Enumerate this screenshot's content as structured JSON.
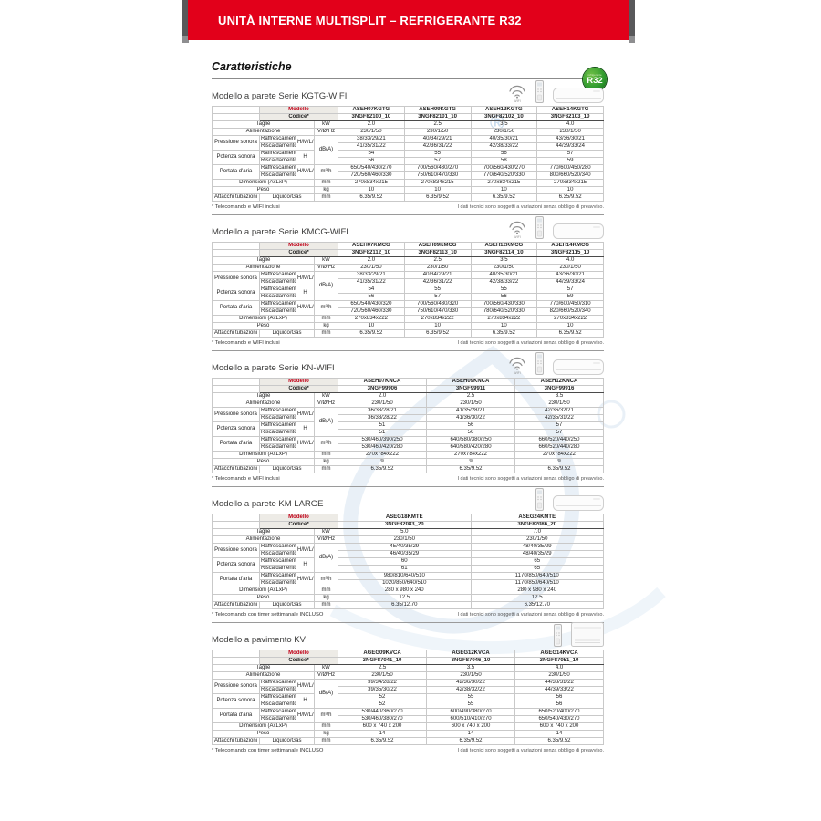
{
  "banner": {
    "title": "UNITÀ INTERNE MULTISPLIT – REFRIGERANTE R32"
  },
  "page": {
    "heading": "Caratteristiche",
    "badge": {
      "small": "refrigerante",
      "label": "R32"
    }
  },
  "watermark": {
    "symbol": "®"
  },
  "labels": {
    "modello": "Modello",
    "codice": "Codice*",
    "taglie": "Taglie",
    "alimentazione": "Alimentazione",
    "pressione": "Pressione sonora",
    "potenza": "Potenza sonora",
    "portata": "Portata d'aria",
    "raffrescamento": "Raffrescamento",
    "riscaldamento": "Riscaldamento",
    "hmlq": "H/M/L/Q",
    "h": "H",
    "dimensioni": "Dimensioni (AxLxP)",
    "peso": "Peso",
    "attacchi": "Attacchi tubazioni",
    "liquido_gas": "Liquido/Gas",
    "wifi": "WIFI",
    "units": {
      "kw": "kW",
      "alim": "V/Ø/Hz",
      "dba": "dB(A)",
      "m3h": "m³/h",
      "mm": "mm",
      "kg": "kg"
    }
  },
  "row_template": [
    {
      "kind": "simple",
      "label_key": "taglie",
      "unit_key": "kw",
      "data_key": "taglie"
    },
    {
      "kind": "simple",
      "label_key": "alimentazione",
      "unit_key": "alim",
      "data_key": "alimentazione"
    },
    {
      "kind": "group",
      "label_key": "pressione",
      "sym_key": "hmlq",
      "unit_key": "dba",
      "unit_rowspan": 4,
      "rows": [
        [
          "raffrescamento",
          "press_raff"
        ],
        [
          "riscaldamento",
          "press_risc"
        ]
      ]
    },
    {
      "kind": "group",
      "label_key": "potenza",
      "sym_key": "h",
      "unit_key": null,
      "rows": [
        [
          "raffrescamento",
          "pot_raff"
        ],
        [
          "riscaldamento",
          "pot_risc"
        ]
      ]
    },
    {
      "kind": "group",
      "label_key": "portata",
      "sym_key": "hmlq",
      "unit_key": "m3h",
      "unit_rowspan": 2,
      "rows": [
        [
          "raffrescamento",
          "port_raff"
        ],
        [
          "riscaldamento",
          "port_risc"
        ]
      ]
    },
    {
      "kind": "simple",
      "label_key": "dimensioni",
      "unit_key": "mm",
      "data_key": "dimensioni"
    },
    {
      "kind": "simple",
      "label_key": "peso",
      "unit_key": "kg",
      "data_key": "peso"
    },
    {
      "kind": "sub",
      "label_key": "attacchi",
      "sub_key": "liquido_gas",
      "unit_key": "mm",
      "data_key": "attacchi"
    }
  ],
  "footnote_right": "I dati tecnici sono soggetti a variazioni senza obbligo di preavviso.",
  "sections": [
    {
      "id": "kgtg-wifi",
      "title": "Modello a parete Serie KGTG-WIFI",
      "icons": [
        "wifi",
        "remote",
        "wall"
      ],
      "footnote_left": "* Telecomando e WIFI inclusi",
      "models": [
        "ASEH07KGTG",
        "ASEH09KGTG",
        "ASEH12KGTG",
        "ASEH14KGTG"
      ],
      "codes": [
        "3NGF82100_10",
        "3NGF82101_10",
        "3NGF82102_10",
        "3NGF82103_10"
      ],
      "taglie": [
        "2.0",
        "2.5",
        "3.5",
        "4.0"
      ],
      "alimentazione": [
        "230/1/50",
        "230/1/50",
        "230/1/50",
        "230/1/50"
      ],
      "press_raff": [
        "38/33/29/21",
        "40/34/29/21",
        "40/35/30/21",
        "43/36/30/21"
      ],
      "press_risc": [
        "41/35/31/22",
        "42/36/31/22",
        "42/38/33/22",
        "44/39/33/24"
      ],
      "pot_raff": [
        "54",
        "55",
        "56",
        "57"
      ],
      "pot_risc": [
        "56",
        "57",
        "58",
        "59"
      ],
      "port_raff": [
        "650/540/430/270",
        "700/560/430/270",
        "700/560/430/270",
        "770/600/450/280"
      ],
      "port_risc": [
        "720/560/460/330",
        "750/610/470/330",
        "770/640/520/330",
        "800/660/520/340"
      ],
      "dimensioni": [
        "270x834x215",
        "270x834x215",
        "270x834x215",
        "270x834x215"
      ],
      "peso": [
        "10",
        "10",
        "10",
        "10"
      ],
      "attacchi": [
        "6.35/9.52",
        "6.35/9.52",
        "6.35/9.52",
        "6.35/9.52"
      ]
    },
    {
      "id": "kmcg-wifi",
      "title": "Modello a parete Serie KMCG-WIFI",
      "icons": [
        "wifi",
        "remote",
        "wall"
      ],
      "footnote_left": "* Telecomando e WIFI inclusi",
      "models": [
        "ASEH07KMCG",
        "ASEH09KMCG",
        "ASEH12KMCG",
        "ASEH14KMCG"
      ],
      "codes": [
        "3NGF82112_10",
        "3NGF82113_10",
        "3NGF82114_10",
        "3NGF82115_10"
      ],
      "taglie": [
        "2.0",
        "2.5",
        "3.5",
        "4.0"
      ],
      "alimentazione": [
        "230/1/50",
        "230/1/50",
        "230/1/50",
        "230/1/50"
      ],
      "press_raff": [
        "38/33/29/21",
        "40/34/29/21",
        "40/35/30/21",
        "43/36/30/21"
      ],
      "press_risc": [
        "41/35/31/22",
        "42/36/31/22",
        "42/38/33/22",
        "44/39/33/24"
      ],
      "pot_raff": [
        "54",
        "55",
        "55",
        "57"
      ],
      "pot_risc": [
        "56",
        "57",
        "56",
        "59"
      ],
      "port_raff": [
        "650/540/430/320",
        "700/560/430/320",
        "700/560/430/330",
        "770/600/450/310"
      ],
      "port_risc": [
        "720/560/460/330",
        "750/610/470/330",
        "780/640/520/330",
        "820/660/520/340"
      ],
      "dimensioni": [
        "270x834x222",
        "270x834x222",
        "270x834x222",
        "270x834x222"
      ],
      "peso": [
        "10",
        "10",
        "10",
        "10"
      ],
      "attacchi": [
        "6.35/9.52",
        "6.35/9.52",
        "6.35/9.52",
        "6.35/9.52"
      ]
    },
    {
      "id": "kn-wifi",
      "title": "Modello a parete Serie KN-WIFI",
      "icons": [
        "wifi",
        "remote",
        "wall"
      ],
      "footnote_left": "* Telecomando e WIFI inclusi",
      "models": [
        "ASEH07KNCA",
        "ASEH09KNCA",
        "ASEH12KNCA"
      ],
      "codes": [
        "3NGF99906",
        "3NGF99911",
        "3NGF99916"
      ],
      "taglie": [
        "2.0",
        "2.5",
        "3.5"
      ],
      "alimentazione": [
        "230/1/50",
        "230/1/50",
        "230/1/50"
      ],
      "press_raff": [
        "36/33/28/21",
        "41/35/28/21",
        "42/36/32/21"
      ],
      "press_risc": [
        "36/33/28/22",
        "41/36/30/22",
        "42/35/31/22"
      ],
      "pot_raff": [
        "51",
        "56",
        "57"
      ],
      "pot_risc": [
        "51",
        "56",
        "57"
      ],
      "port_raff": [
        "530/460/390/250",
        "640/580/380/250",
        "660/520/440/250"
      ],
      "port_risc": [
        "530/460/420/280",
        "640/580/420/280",
        "660/520/440/280"
      ],
      "dimensioni": [
        "270x784x222",
        "270x784x222",
        "270x784x222"
      ],
      "peso": [
        "9",
        "9",
        "9"
      ],
      "attacchi": [
        "6.35/9.52",
        "6.35/9.52",
        "6.35/9.52"
      ]
    },
    {
      "id": "km-large",
      "title": "Modello a parete KM LARGE",
      "icons": [
        "remote",
        "wall"
      ],
      "footnote_left": "* Telecomando con timer settimanale INCLUSO",
      "models": [
        "ASEG18KMTE",
        "ASEG24KMTE"
      ],
      "codes": [
        "3NGF82083_20",
        "3NGF82086_20"
      ],
      "taglie": [
        "5.0",
        "7.0"
      ],
      "alimentazione": [
        "230/1/50",
        "230/1/50"
      ],
      "press_raff": [
        "45/40/35/29",
        "48/40/35/29"
      ],
      "press_risc": [
        "46/40/35/29",
        "48/40/35/29"
      ],
      "pot_raff": [
        "60",
        "65"
      ],
      "pot_risc": [
        "61",
        "65"
      ],
      "port_raff": [
        "980/810/640/510",
        "1170/850/640/510"
      ],
      "port_risc": [
        "1020/850/640/510",
        "1170/850/640/510"
      ],
      "dimensioni": [
        "280 x 980 x 240",
        "280 x 980 x 240"
      ],
      "peso": [
        "12.5",
        "12.5"
      ],
      "attacchi": [
        "6.35/12.70",
        "6.35/12.70"
      ]
    },
    {
      "id": "kv-pavimento",
      "title": "Modello a pavimento KV",
      "icons": [
        "remote",
        "floor"
      ],
      "footnote_left": "* Telecomando con timer settimanale INCLUSO",
      "models": [
        "AGEG09KVCA",
        "AGEG12KVCA",
        "AGEG14KVCA"
      ],
      "codes": [
        "3NGF87041_10",
        "3NGF87046_10",
        "3NGF87051_10"
      ],
      "taglie": [
        "2.5",
        "3.5",
        "4.0"
      ],
      "alimentazione": [
        "230/1/50",
        "230/1/50",
        "230/1/50"
      ],
      "press_raff": [
        "39/34/28/22",
        "42/36/30/22",
        "44/38/31/22"
      ],
      "press_risc": [
        "39/35/30/22",
        "42/38/32/22",
        "44/39/33/22"
      ],
      "pot_raff": [
        "52",
        "55",
        "56"
      ],
      "pot_risc": [
        "52",
        "55",
        "56"
      ],
      "port_raff": [
        "530/440/360/270",
        "600/490/380/270",
        "650/520/400/270"
      ],
      "port_risc": [
        "530/460/380/270",
        "600/510/410/270",
        "650/540/430/270"
      ],
      "dimensioni": [
        "600 x 740 x 200",
        "600 x 740 x 200",
        "600 x 740 x 200"
      ],
      "peso": [
        "14",
        "14",
        "14"
      ],
      "attacchi": [
        "6.35/9.52",
        "6.35/9.52",
        "6.35/9.52"
      ]
    }
  ]
}
